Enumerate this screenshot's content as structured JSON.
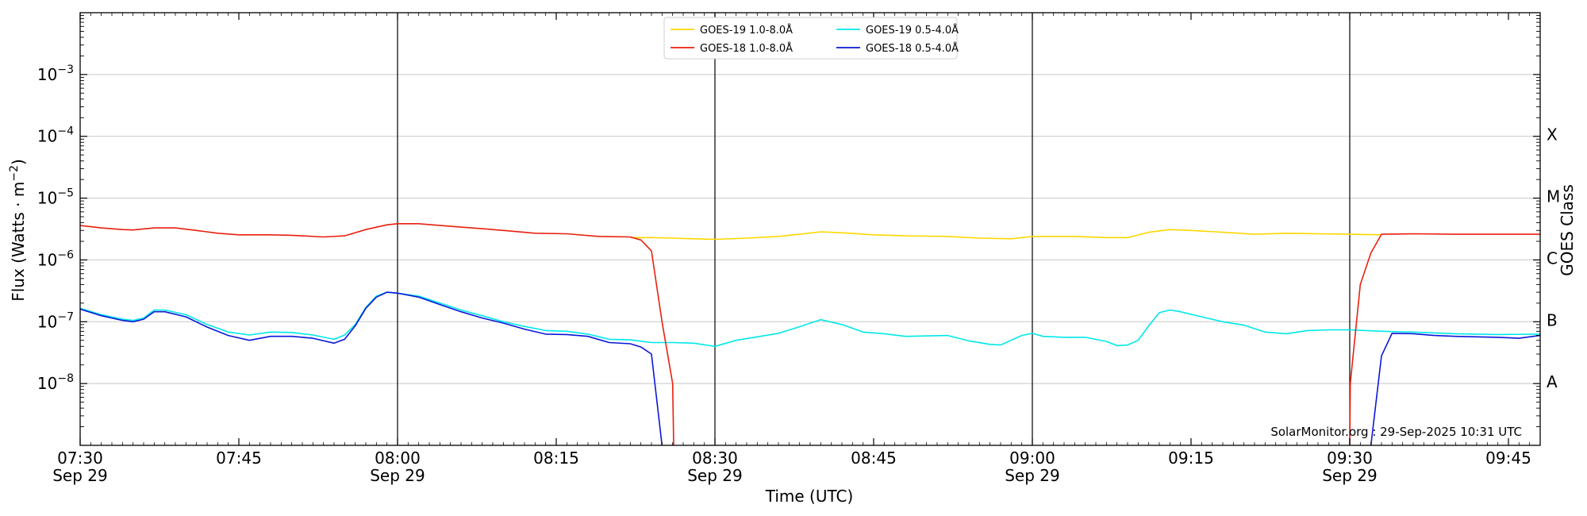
{
  "chart_data": {
    "type": "line",
    "ylabel": "Flux (Watts · m",
    "ylabel_exp": "−2",
    "ylabel_close": ")",
    "xlabel": "Time (UTC)",
    "right_label": "GOES Class",
    "credit": "SolarMonitor.org : 29-Sep-2025 10:31 UTC",
    "y_scale": "log",
    "ylim": [
      1e-09,
      0.01
    ],
    "xlim": [
      "07:30",
      "09:48"
    ],
    "grid": "horizontal",
    "legend_placement": "top-center",
    "y_ticks": [
      {
        "value": 1e-08,
        "mantissa": "10",
        "exp": "−8"
      },
      {
        "value": 1e-07,
        "mantissa": "10",
        "exp": "−7"
      },
      {
        "value": 1e-06,
        "mantissa": "10",
        "exp": "−6"
      },
      {
        "value": 1e-05,
        "mantissa": "10",
        "exp": "−5"
      },
      {
        "value": 0.0001,
        "mantissa": "10",
        "exp": "−4"
      },
      {
        "value": 0.001,
        "mantissa": "10",
        "exp": "−3"
      }
    ],
    "x_ticks": [
      {
        "time": "07:30",
        "label": "07:30",
        "date": "Sep 29",
        "vline": false
      },
      {
        "time": "07:45",
        "label": "07:45",
        "date": "",
        "vline": false
      },
      {
        "time": "08:00",
        "label": "08:00",
        "date": "Sep 29",
        "vline": true
      },
      {
        "time": "08:15",
        "label": "08:15",
        "date": "",
        "vline": false
      },
      {
        "time": "08:30",
        "label": "08:30",
        "date": "Sep 29",
        "vline": true
      },
      {
        "time": "08:45",
        "label": "08:45",
        "date": "",
        "vline": false
      },
      {
        "time": "09:00",
        "label": "09:00",
        "date": "Sep 29",
        "vline": true
      },
      {
        "time": "09:15",
        "label": "09:15",
        "date": "",
        "vline": false
      },
      {
        "time": "09:30",
        "label": "09:30",
        "date": "Sep 29",
        "vline": true
      },
      {
        "time": "09:45",
        "label": "09:45",
        "date": "",
        "vline": false
      }
    ],
    "goes_classes": [
      {
        "label": "A",
        "value": 1e-08
      },
      {
        "label": "B",
        "value": 1e-07
      },
      {
        "label": "C",
        "value": 1e-06
      },
      {
        "label": "M",
        "value": 1e-05
      },
      {
        "label": "X",
        "value": 0.0001
      }
    ],
    "series": [
      {
        "name": "GOES-19 1.0-8.0Å",
        "color": "#ffd700",
        "points": [
          [
            "08:22",
            2.3e-06
          ],
          [
            "08:24",
            2.3e-06
          ],
          [
            "08:26",
            2.25e-06
          ],
          [
            "08:28",
            2.2e-06
          ],
          [
            "08:30",
            2.15e-06
          ],
          [
            "08:33",
            2.25e-06
          ],
          [
            "08:36",
            2.4e-06
          ],
          [
            "08:38",
            2.6e-06
          ],
          [
            "08:40",
            2.85e-06
          ],
          [
            "08:42",
            2.75e-06
          ],
          [
            "08:45",
            2.55e-06
          ],
          [
            "08:48",
            2.45e-06
          ],
          [
            "08:52",
            2.4e-06
          ],
          [
            "08:55",
            2.25e-06
          ],
          [
            "08:58",
            2.2e-06
          ],
          [
            "09:00",
            2.4e-06
          ],
          [
            "09:04",
            2.4e-06
          ],
          [
            "09:07",
            2.3e-06
          ],
          [
            "09:09",
            2.3e-06
          ],
          [
            "09:11",
            2.8e-06
          ],
          [
            "09:13",
            3.1e-06
          ],
          [
            "09:15",
            3e-06
          ],
          [
            "09:18",
            2.8e-06
          ],
          [
            "09:21",
            2.6e-06
          ],
          [
            "09:24",
            2.7e-06
          ],
          [
            "09:27",
            2.65e-06
          ],
          [
            "09:30",
            2.6e-06
          ],
          [
            "09:33",
            2.55e-06
          ]
        ]
      },
      {
        "name": "GOES-18 1.0-8.0Å",
        "color": "#e82010",
        "points": [
          [
            "07:30",
            3.6e-06
          ],
          [
            "07:32",
            3.3e-06
          ],
          [
            "07:34",
            3.1e-06
          ],
          [
            "07:35",
            3.05e-06
          ],
          [
            "07:37",
            3.3e-06
          ],
          [
            "07:39",
            3.3e-06
          ],
          [
            "07:41",
            3e-06
          ],
          [
            "07:43",
            2.7e-06
          ],
          [
            "07:45",
            2.55e-06
          ],
          [
            "07:48",
            2.55e-06
          ],
          [
            "07:50",
            2.5e-06
          ],
          [
            "07:53",
            2.35e-06
          ],
          [
            "07:55",
            2.45e-06
          ],
          [
            "07:57",
            3.1e-06
          ],
          [
            "07:59",
            3.7e-06
          ],
          [
            "08:00",
            3.85e-06
          ],
          [
            "08:02",
            3.85e-06
          ],
          [
            "08:05",
            3.5e-06
          ],
          [
            "08:08",
            3.2e-06
          ],
          [
            "08:10",
            3e-06
          ],
          [
            "08:13",
            2.7e-06
          ],
          [
            "08:16",
            2.65e-06
          ],
          [
            "08:19",
            2.4e-06
          ],
          [
            "08:22",
            2.35e-06
          ],
          [
            "08:23",
            2.1e-06
          ],
          [
            "08:24",
            1.4e-06
          ],
          [
            "08:25",
            1e-07
          ],
          [
            "08:26",
            1e-08
          ],
          [
            "08:26.1",
            1e-09
          ]
        ],
        "points2": [
          [
            "09:30",
            1e-09
          ],
          [
            "09:30.05",
            1e-08
          ],
          [
            "09:31",
            4e-07
          ],
          [
            "09:32",
            1.3e-06
          ],
          [
            "09:33",
            2.6e-06
          ],
          [
            "09:36",
            2.65e-06
          ],
          [
            "09:40",
            2.6e-06
          ],
          [
            "09:44",
            2.6e-06
          ],
          [
            "09:48",
            2.6e-06
          ]
        ]
      },
      {
        "name": "GOES-19 0.5-4.0Å",
        "color": "#00e8e8",
        "points": [
          [
            "07:30",
            1.65e-07
          ],
          [
            "07:32",
            1.3e-07
          ],
          [
            "07:34",
            1.1e-07
          ],
          [
            "07:35",
            1.05e-07
          ],
          [
            "07:36",
            1.15e-07
          ],
          [
            "07:37",
            1.55e-07
          ],
          [
            "07:38",
            1.55e-07
          ],
          [
            "07:40",
            1.3e-07
          ],
          [
            "07:42",
            9e-08
          ],
          [
            "07:44",
            6.8e-08
          ],
          [
            "07:46",
            6.1e-08
          ],
          [
            "07:48",
            6.8e-08
          ],
          [
            "07:50",
            6.7e-08
          ],
          [
            "07:52",
            6.1e-08
          ],
          [
            "07:54",
            5.2e-08
          ],
          [
            "07:55",
            6.1e-08
          ],
          [
            "07:56",
            9e-08
          ],
          [
            "07:57",
            1.7e-07
          ],
          [
            "07:58",
            2.6e-07
          ],
          [
            "07:59",
            3e-07
          ],
          [
            "08:00",
            2.9e-07
          ],
          [
            "08:02",
            2.6e-07
          ],
          [
            "08:04",
            2e-07
          ],
          [
            "08:06",
            1.55e-07
          ],
          [
            "08:08",
            1.25e-07
          ],
          [
            "08:10",
            1e-07
          ],
          [
            "08:12",
            8.4e-08
          ],
          [
            "08:14",
            7.2e-08
          ],
          [
            "08:16",
            7e-08
          ],
          [
            "08:18",
            6.3e-08
          ],
          [
            "08:20",
            5.2e-08
          ],
          [
            "08:22",
            5.1e-08
          ],
          [
            "08:24",
            4.6e-08
          ],
          [
            "08:26",
            4.6e-08
          ],
          [
            "08:28",
            4.5e-08
          ],
          [
            "08:30",
            4e-08
          ],
          [
            "08:32",
            5e-08
          ],
          [
            "08:34",
            5.7e-08
          ],
          [
            "08:36",
            6.5e-08
          ],
          [
            "08:38",
            8.3e-08
          ],
          [
            "08:40",
            1.08e-07
          ],
          [
            "08:42",
            9e-08
          ],
          [
            "08:44",
            6.8e-08
          ],
          [
            "08:46",
            6.4e-08
          ],
          [
            "08:48",
            5.8e-08
          ],
          [
            "08:52",
            6e-08
          ],
          [
            "08:54",
            4.9e-08
          ],
          [
            "08:56",
            4.3e-08
          ],
          [
            "08:57",
            4.2e-08
          ],
          [
            "08:59",
            6e-08
          ],
          [
            "09:00",
            6.5e-08
          ],
          [
            "09:01",
            5.8e-08
          ],
          [
            "09:03",
            5.6e-08
          ],
          [
            "09:05",
            5.6e-08
          ],
          [
            "09:07",
            4.8e-08
          ],
          [
            "09:08",
            4.1e-08
          ],
          [
            "09:09",
            4.2e-08
          ],
          [
            "09:10",
            5e-08
          ],
          [
            "09:11",
            8.6e-08
          ],
          [
            "09:12",
            1.4e-07
          ],
          [
            "09:13",
            1.55e-07
          ],
          [
            "09:14",
            1.45e-07
          ],
          [
            "09:16",
            1.2e-07
          ],
          [
            "09:18",
            1e-07
          ],
          [
            "09:20",
            8.8e-08
          ],
          [
            "09:22",
            6.8e-08
          ],
          [
            "09:24",
            6.4e-08
          ],
          [
            "09:26",
            7.2e-08
          ],
          [
            "09:28",
            7.4e-08
          ],
          [
            "09:30",
            7.4e-08
          ],
          [
            "09:33",
            7e-08
          ],
          [
            "09:36",
            6.8e-08
          ],
          [
            "09:40",
            6.4e-08
          ],
          [
            "09:44",
            6.2e-08
          ],
          [
            "09:48",
            6.3e-08
          ]
        ]
      },
      {
        "name": "GOES-18 0.5-4.0Å",
        "color": "#0a18d8",
        "points": [
          [
            "07:30",
            1.6e-07
          ],
          [
            "07:32",
            1.25e-07
          ],
          [
            "07:34",
            1.05e-07
          ],
          [
            "07:35",
            1e-07
          ],
          [
            "07:36",
            1.1e-07
          ],
          [
            "07:37",
            1.45e-07
          ],
          [
            "07:38",
            1.45e-07
          ],
          [
            "07:40",
            1.2e-07
          ],
          [
            "07:42",
            8.2e-08
          ],
          [
            "07:44",
            6e-08
          ],
          [
            "07:46",
            5e-08
          ],
          [
            "07:48",
            5.8e-08
          ],
          [
            "07:50",
            5.8e-08
          ],
          [
            "07:52",
            5.4e-08
          ],
          [
            "07:54",
            4.5e-08
          ],
          [
            "07:55",
            5.2e-08
          ],
          [
            "07:56",
            8.6e-08
          ],
          [
            "07:57",
            1.65e-07
          ],
          [
            "07:58",
            2.5e-07
          ],
          [
            "07:59",
            3e-07
          ],
          [
            "08:00",
            2.9e-07
          ],
          [
            "08:02",
            2.5e-07
          ],
          [
            "08:04",
            1.9e-07
          ],
          [
            "08:06",
            1.45e-07
          ],
          [
            "08:08",
            1.15e-07
          ],
          [
            "08:10",
            9.5e-08
          ],
          [
            "08:12",
            7.6e-08
          ],
          [
            "08:14",
            6.3e-08
          ],
          [
            "08:16",
            6.2e-08
          ],
          [
            "08:18",
            5.8e-08
          ],
          [
            "08:20",
            4.6e-08
          ],
          [
            "08:22",
            4.4e-08
          ],
          [
            "08:23",
            3.9e-08
          ],
          [
            "08:24",
            3e-08
          ],
          [
            "08:25",
            1e-09
          ]
        ],
        "points2": [
          [
            "09:32",
            1e-09
          ],
          [
            "09:33",
            2.8e-08
          ],
          [
            "09:34",
            6.5e-08
          ],
          [
            "09:36",
            6.4e-08
          ],
          [
            "09:38",
            6e-08
          ],
          [
            "09:40",
            5.8e-08
          ],
          [
            "09:44",
            5.6e-08
          ],
          [
            "09:46",
            5.4e-08
          ],
          [
            "09:48",
            6e-08
          ]
        ]
      }
    ]
  }
}
